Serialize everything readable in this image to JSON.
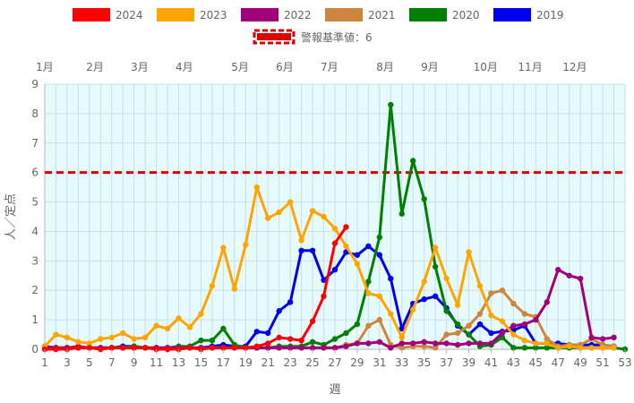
{
  "chart_data": {
    "type": "line",
    "xlabel": "週",
    "ylabel": "人／定点",
    "ylim": [
      0,
      9
    ],
    "xlim": [
      1,
      53
    ],
    "x_ticks": [
      1,
      3,
      5,
      7,
      9,
      11,
      13,
      15,
      17,
      19,
      21,
      23,
      25,
      27,
      29,
      31,
      33,
      35,
      37,
      39,
      41,
      43,
      45,
      47,
      49,
      51,
      53
    ],
    "y_ticks": [
      0,
      1,
      2,
      3,
      4,
      5,
      6,
      7,
      8,
      9
    ],
    "grid": true,
    "legend_position": "top",
    "months": [
      {
        "label": "1月",
        "week": 1
      },
      {
        "label": "2月",
        "week": 5.5
      },
      {
        "label": "3月",
        "week": 9.5
      },
      {
        "label": "4月",
        "week": 13.5
      },
      {
        "label": "5月",
        "week": 18.5
      },
      {
        "label": "6月",
        "week": 22.5
      },
      {
        "label": "7月",
        "week": 26.5
      },
      {
        "label": "8月",
        "week": 31.5
      },
      {
        "label": "9月",
        "week": 35.5
      },
      {
        "label": "10月",
        "week": 40.5
      },
      {
        "label": "11月",
        "week": 44.5
      },
      {
        "label": "12月",
        "week": 48.5
      }
    ],
    "threshold": {
      "name": "警報基準値：6",
      "value": 6,
      "color": "#dd0000"
    },
    "series": [
      {
        "name": "2019",
        "color": "#0000ee",
        "values": [
          0.1,
          0.05,
          0.05,
          0.05,
          0.05,
          0.05,
          0.05,
          0.1,
          0.1,
          0.05,
          0.05,
          0.05,
          0.05,
          0.05,
          0.05,
          0.1,
          0.15,
          0.1,
          0.1,
          0.6,
          0.55,
          1.3,
          1.6,
          3.35,
          3.35,
          2.35,
          2.7,
          3.3,
          3.2,
          3.5,
          3.2,
          2.4,
          0.7,
          1.55,
          1.7,
          1.8,
          1.4,
          0.8,
          0.5,
          0.85,
          0.55,
          0.6,
          0.65,
          0.8,
          0.2,
          0.2,
          0.2,
          0.15,
          0.15,
          0.15,
          0.15,
          0.1,
          null
        ]
      },
      {
        "name": "2020",
        "color": "#008000",
        "values": [
          0.05,
          0.05,
          0.05,
          0.05,
          0.05,
          0.05,
          0.05,
          0.05,
          0.1,
          0.05,
          0.05,
          0.05,
          0.1,
          0.1,
          0.3,
          0.3,
          0.7,
          0.15,
          0.05,
          0.05,
          0.05,
          0.1,
          0.1,
          0.1,
          0.25,
          0.15,
          0.35,
          0.55,
          0.85,
          2.3,
          3.8,
          8.3,
          4.6,
          6.4,
          5.1,
          2.8,
          1.3,
          0.85,
          0.5,
          0.1,
          0.15,
          0.4,
          0.05,
          0.05,
          0.05,
          0.05,
          0.05,
          0.05,
          0.05,
          0.05,
          0.05,
          0.05,
          0.0
        ]
      },
      {
        "name": "2021",
        "color": "#cd853f",
        "values": [
          0.05,
          0.05,
          0.05,
          0.05,
          0.05,
          0.05,
          0.05,
          0.05,
          0.05,
          0.05,
          0.05,
          0.05,
          0.05,
          0.05,
          0.05,
          0.05,
          0.05,
          0.05,
          0.05,
          0.05,
          0.05,
          0.05,
          0.05,
          0.05,
          0.05,
          0.05,
          0.05,
          0.15,
          0.2,
          0.8,
          1.0,
          0.15,
          0.05,
          0.1,
          0.1,
          0.05,
          0.5,
          0.55,
          0.8,
          1.2,
          1.9,
          2.0,
          1.55,
          1.2,
          1.1,
          0.35,
          0.1,
          0.15,
          0.15,
          0.35,
          0.15,
          0.1,
          null
        ]
      },
      {
        "name": "2022",
        "color": "#a0007a",
        "values": [
          0.1,
          0.05,
          0.05,
          0.1,
          0.05,
          0.05,
          0.05,
          0.05,
          0.05,
          0.05,
          0.05,
          0.05,
          0.05,
          0.05,
          0.05,
          0.05,
          0.05,
          0.05,
          0.05,
          0.05,
          0.05,
          0.05,
          0.05,
          0.05,
          0.05,
          0.05,
          0.05,
          0.1,
          0.2,
          0.2,
          0.25,
          0.05,
          0.2,
          0.2,
          0.25,
          0.2,
          0.2,
          0.15,
          0.2,
          0.2,
          0.2,
          0.55,
          0.8,
          0.85,
          1.0,
          1.6,
          2.7,
          2.5,
          2.4,
          0.4,
          0.35,
          0.4,
          null
        ]
      },
      {
        "name": "2023",
        "color": "#ffa500",
        "values": [
          0.1,
          0.5,
          0.4,
          0.25,
          0.2,
          0.35,
          0.4,
          0.55,
          0.35,
          0.4,
          0.8,
          0.7,
          1.05,
          0.75,
          1.2,
          2.15,
          3.45,
          2.05,
          3.55,
          5.5,
          4.45,
          4.65,
          5.0,
          3.7,
          4.7,
          4.5,
          4.1,
          3.5,
          2.9,
          1.9,
          1.8,
          1.2,
          0.4,
          1.35,
          2.3,
          3.45,
          2.4,
          1.5,
          3.3,
          2.15,
          1.15,
          0.95,
          0.5,
          0.3,
          0.2,
          0.2,
          0.05,
          0.1,
          0.05,
          0.05,
          0.05,
          0.05,
          null
        ]
      },
      {
        "name": "2024",
        "color": "#ff0000",
        "values": [
          0.0,
          0.0,
          0.0,
          0.05,
          0.05,
          0.0,
          0.05,
          0.05,
          0.05,
          0.05,
          0.0,
          0.0,
          0.0,
          0.05,
          0.0,
          0.05,
          0.05,
          0.05,
          0.05,
          0.1,
          0.2,
          0.4,
          0.35,
          0.3,
          0.95,
          1.8,
          3.6,
          4.15,
          null,
          null,
          null,
          null,
          null,
          null,
          null,
          null,
          null,
          null,
          null,
          null,
          null,
          null,
          null,
          null,
          null,
          null,
          null,
          null,
          null,
          null,
          null,
          null,
          null
        ]
      }
    ]
  }
}
